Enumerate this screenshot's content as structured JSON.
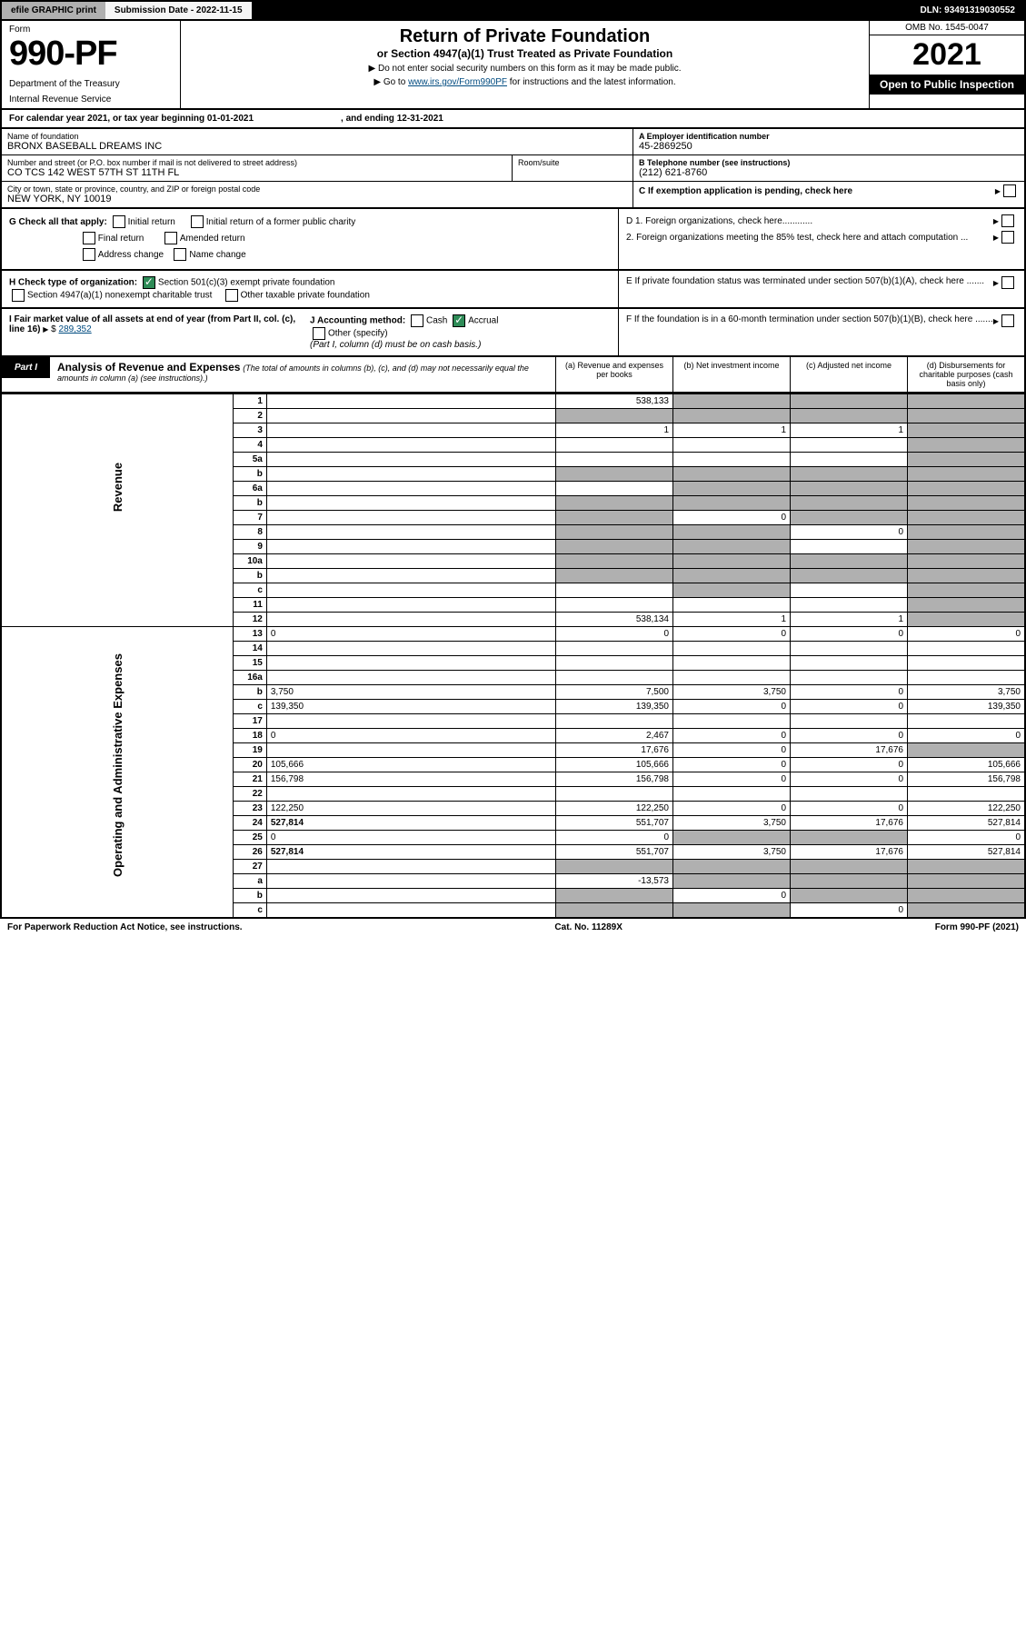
{
  "topbar": {
    "efile": "efile GRAPHIC print",
    "submission": "Submission Date - 2022-11-15",
    "dln": "DLN: 93491319030552"
  },
  "header": {
    "form_label": "Form",
    "form_number": "990-PF",
    "dept1": "Department of the Treasury",
    "dept2": "Internal Revenue Service",
    "title": "Return of Private Foundation",
    "subtitle": "or Section 4947(a)(1) Trust Treated as Private Foundation",
    "instr1": "▶ Do not enter social security numbers on this form as it may be made public.",
    "instr2_pre": "▶ Go to ",
    "instr2_link": "www.irs.gov/Form990PF",
    "instr2_post": " for instructions and the latest information.",
    "omb": "OMB No. 1545-0047",
    "year": "2021",
    "inspect": "Open to Public Inspection"
  },
  "calyear": "For calendar year 2021, or tax year beginning 01-01-2021",
  "calyear_end": ", and ending 12-31-2021",
  "foundation": {
    "name_label": "Name of foundation",
    "name": "BRONX BASEBALL DREAMS INC",
    "addr_label": "Number and street (or P.O. box number if mail is not delivered to street address)",
    "addr": "CO TCS 142 WEST 57TH ST 11TH FL",
    "room_label": "Room/suite",
    "city_label": "City or town, state or province, country, and ZIP or foreign postal code",
    "city": "NEW YORK, NY  10019",
    "ein_label": "A Employer identification number",
    "ein": "45-2869250",
    "tel_label": "B Telephone number (see instructions)",
    "tel": "(212) 621-8760",
    "c_label": "C If exemption application is pending, check here"
  },
  "sectionG": {
    "label": "G Check all that apply:",
    "opts": [
      "Initial return",
      "Final return",
      "Address change",
      "Initial return of a former public charity",
      "Amended return",
      "Name change"
    ]
  },
  "sectionD": {
    "d1": "D 1. Foreign organizations, check here............",
    "d2": "2. Foreign organizations meeting the 85% test, check here and attach computation ...",
    "e": "E If private foundation status was terminated under section 507(b)(1)(A), check here .......",
    "f": "F If the foundation is in a 60-month termination under section 507(b)(1)(B), check here ......."
  },
  "sectionH": {
    "label": "H Check type of organization:",
    "opt1": "Section 501(c)(3) exempt private foundation",
    "opt2": "Section 4947(a)(1) nonexempt charitable trust",
    "opt3": "Other taxable private foundation"
  },
  "sectionI": {
    "label": "I Fair market value of all assets at end of year (from Part II, col. (c), line 16)",
    "val": "289,352"
  },
  "sectionJ": {
    "label": "J Accounting method:",
    "cash": "Cash",
    "accrual": "Accrual",
    "other": "Other (specify)",
    "note": "(Part I, column (d) must be on cash basis.)"
  },
  "part1": {
    "tab": "Part I",
    "title": "Analysis of Revenue and Expenses",
    "note": "(The total of amounts in columns (b), (c), and (d) may not necessarily equal the amounts in column (a) (see instructions).)",
    "cols": {
      "a": "(a) Revenue and expenses per books",
      "b": "(b) Net investment income",
      "c": "(c) Adjusted net income",
      "d": "(d) Disbursements for charitable purposes (cash basis only)"
    }
  },
  "sides": {
    "revenue": "Revenue",
    "expenses": "Operating and Administrative Expenses"
  },
  "lines": [
    {
      "n": "1",
      "d": "",
      "a": "538,133",
      "b": "",
      "c": "",
      "sa": false,
      "sb": true,
      "sc": true,
      "sd": true
    },
    {
      "n": "2",
      "d": "",
      "a": "",
      "b": "",
      "c": "",
      "sa": true,
      "sb": true,
      "sc": true,
      "sd": true,
      "bold_not": true
    },
    {
      "n": "3",
      "d": "",
      "a": "1",
      "b": "1",
      "c": "1",
      "sa": false,
      "sb": false,
      "sc": false,
      "sd": true
    },
    {
      "n": "4",
      "d": "",
      "a": "",
      "b": "",
      "c": "",
      "sa": false,
      "sb": false,
      "sc": false,
      "sd": true
    },
    {
      "n": "5a",
      "d": "",
      "a": "",
      "b": "",
      "c": "",
      "sa": false,
      "sb": false,
      "sc": false,
      "sd": true
    },
    {
      "n": "b",
      "d": "",
      "a": "",
      "b": "",
      "c": "",
      "sa": true,
      "sb": true,
      "sc": true,
      "sd": true,
      "inline": true
    },
    {
      "n": "6a",
      "d": "",
      "a": "",
      "b": "",
      "c": "",
      "sa": false,
      "sb": true,
      "sc": true,
      "sd": true
    },
    {
      "n": "b",
      "d": "",
      "a": "",
      "b": "",
      "c": "",
      "sa": true,
      "sb": true,
      "sc": true,
      "sd": true,
      "inline": true
    },
    {
      "n": "7",
      "d": "",
      "a": "",
      "b": "0",
      "c": "",
      "sa": true,
      "sb": false,
      "sc": true,
      "sd": true
    },
    {
      "n": "8",
      "d": "",
      "a": "",
      "b": "",
      "c": "0",
      "sa": true,
      "sb": true,
      "sc": false,
      "sd": true
    },
    {
      "n": "9",
      "d": "",
      "a": "",
      "b": "",
      "c": "",
      "sa": true,
      "sb": true,
      "sc": false,
      "sd": true
    },
    {
      "n": "10a",
      "d": "",
      "a": "",
      "b": "",
      "c": "",
      "sa": true,
      "sb": true,
      "sc": true,
      "sd": true,
      "inline": true
    },
    {
      "n": "b",
      "d": "",
      "a": "",
      "b": "",
      "c": "",
      "sa": true,
      "sb": true,
      "sc": true,
      "sd": true,
      "inline": true
    },
    {
      "n": "c",
      "d": "",
      "a": "",
      "b": "",
      "c": "",
      "sa": false,
      "sb": true,
      "sc": false,
      "sd": true
    },
    {
      "n": "11",
      "d": "",
      "a": "",
      "b": "",
      "c": "",
      "sa": false,
      "sb": false,
      "sc": false,
      "sd": true
    },
    {
      "n": "12",
      "d": "",
      "a": "538,134",
      "b": "1",
      "c": "1",
      "sa": false,
      "sb": false,
      "sc": false,
      "sd": true,
      "bold": true
    },
    {
      "n": "13",
      "d": "0",
      "a": "0",
      "b": "0",
      "c": "0",
      "sa": false,
      "sb": false,
      "sc": false,
      "sd": false
    },
    {
      "n": "14",
      "d": "",
      "a": "",
      "b": "",
      "c": "",
      "sa": false,
      "sb": false,
      "sc": false,
      "sd": false
    },
    {
      "n": "15",
      "d": "",
      "a": "",
      "b": "",
      "c": "",
      "sa": false,
      "sb": false,
      "sc": false,
      "sd": false
    },
    {
      "n": "16a",
      "d": "",
      "a": "",
      "b": "",
      "c": "",
      "sa": false,
      "sb": false,
      "sc": false,
      "sd": false
    },
    {
      "n": "b",
      "d": "3,750",
      "a": "7,500",
      "b": "3,750",
      "c": "0",
      "sa": false,
      "sb": false,
      "sc": false,
      "sd": false
    },
    {
      "n": "c",
      "d": "139,350",
      "a": "139,350",
      "b": "0",
      "c": "0",
      "sa": false,
      "sb": false,
      "sc": false,
      "sd": false
    },
    {
      "n": "17",
      "d": "",
      "a": "",
      "b": "",
      "c": "",
      "sa": false,
      "sb": false,
      "sc": false,
      "sd": false
    },
    {
      "n": "18",
      "d": "0",
      "a": "2,467",
      "b": "0",
      "c": "0",
      "sa": false,
      "sb": false,
      "sc": false,
      "sd": false
    },
    {
      "n": "19",
      "d": "",
      "a": "17,676",
      "b": "0",
      "c": "17,676",
      "sa": false,
      "sb": false,
      "sc": false,
      "sd": true
    },
    {
      "n": "20",
      "d": "105,666",
      "a": "105,666",
      "b": "0",
      "c": "0",
      "sa": false,
      "sb": false,
      "sc": false,
      "sd": false
    },
    {
      "n": "21",
      "d": "156,798",
      "a": "156,798",
      "b": "0",
      "c": "0",
      "sa": false,
      "sb": false,
      "sc": false,
      "sd": false
    },
    {
      "n": "22",
      "d": "",
      "a": "",
      "b": "",
      "c": "",
      "sa": false,
      "sb": false,
      "sc": false,
      "sd": false
    },
    {
      "n": "23",
      "d": "122,250",
      "a": "122,250",
      "b": "0",
      "c": "0",
      "sa": false,
      "sb": false,
      "sc": false,
      "sd": false
    },
    {
      "n": "24",
      "d": "527,814",
      "a": "551,707",
      "b": "3,750",
      "c": "17,676",
      "sa": false,
      "sb": false,
      "sc": false,
      "sd": false,
      "bold": true
    },
    {
      "n": "25",
      "d": "0",
      "a": "0",
      "b": "",
      "c": "",
      "sa": false,
      "sb": true,
      "sc": true,
      "sd": false
    },
    {
      "n": "26",
      "d": "527,814",
      "a": "551,707",
      "b": "3,750",
      "c": "17,676",
      "sa": false,
      "sb": false,
      "sc": false,
      "sd": false,
      "bold": true
    },
    {
      "n": "27",
      "d": "",
      "a": "",
      "b": "",
      "c": "",
      "sa": true,
      "sb": true,
      "sc": true,
      "sd": true
    },
    {
      "n": "a",
      "d": "",
      "a": "-13,573",
      "b": "",
      "c": "",
      "sa": false,
      "sb": true,
      "sc": true,
      "sd": true,
      "bold": true
    },
    {
      "n": "b",
      "d": "",
      "a": "",
      "b": "0",
      "c": "",
      "sa": true,
      "sb": false,
      "sc": true,
      "sd": true,
      "bold": true
    },
    {
      "n": "c",
      "d": "",
      "a": "",
      "b": "",
      "c": "0",
      "sa": true,
      "sb": true,
      "sc": false,
      "sd": true,
      "bold": true
    }
  ],
  "footer": {
    "left": "For Paperwork Reduction Act Notice, see instructions.",
    "mid": "Cat. No. 11289X",
    "right": "Form 990-PF (2021)"
  },
  "colors": {
    "black": "#000000",
    "grey": "#b0b0b0",
    "link": "#004b80",
    "check": "#2e8b57"
  }
}
